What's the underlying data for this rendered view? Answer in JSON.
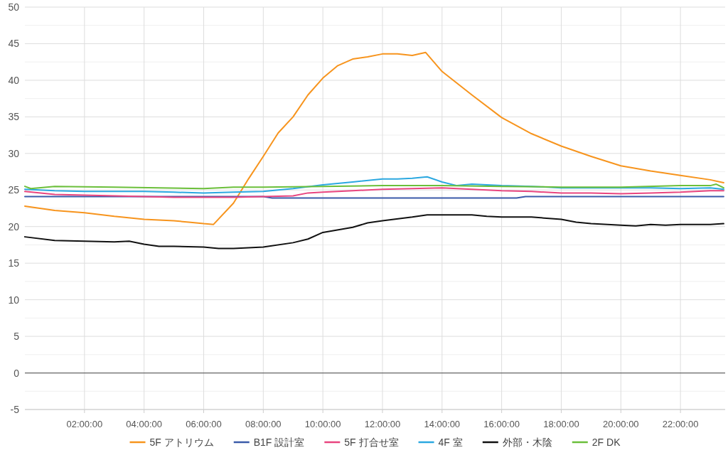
{
  "chart_data": {
    "type": "line",
    "xlim": [
      0,
      23.5
    ],
    "xticks": [
      {
        "value": 2,
        "label": "02:00:00"
      },
      {
        "value": 4,
        "label": "04:00:00"
      },
      {
        "value": 6,
        "label": "06:00:00"
      },
      {
        "value": 8,
        "label": "08:00:00"
      },
      {
        "value": 10,
        "label": "10:00:00"
      },
      {
        "value": 12,
        "label": "12:00:00"
      },
      {
        "value": 14,
        "label": "14:00:00"
      },
      {
        "value": 16,
        "label": "16:00:00"
      },
      {
        "value": 18,
        "label": "18:00:00"
      },
      {
        "value": 20,
        "label": "20:00:00"
      },
      {
        "value": 22,
        "label": "22:00:00"
      }
    ],
    "ylim": [
      -5,
      50
    ],
    "yticks": [
      -5,
      {
        "value": -2.5,
        "label": null
      },
      0,
      {
        "value": 2.5,
        "label": null
      },
      5,
      {
        "value": 7.5,
        "label": null
      },
      10,
      {
        "value": 12.5,
        "label": null
      },
      15,
      {
        "value": 17.5,
        "label": null
      },
      20,
      {
        "value": 22.5,
        "label": null
      },
      25,
      {
        "value": 27.5,
        "label": null
      },
      30,
      {
        "value": 32.5,
        "label": null
      },
      35,
      {
        "value": 37.5,
        "label": null
      },
      40,
      {
        "value": 42.5,
        "label": null
      },
      45,
      {
        "value": 47.5,
        "label": null
      },
      50
    ],
    "grid": true,
    "legend": "bottom",
    "line_style": "solid",
    "marker": "none",
    "ref_lines": [
      {
        "axis": "y",
        "value": 0,
        "color": "#666666"
      }
    ],
    "series": [
      {
        "name": "5F アトリウム",
        "color": "#f7941d",
        "x": [
          0,
          1,
          2,
          3,
          4,
          5,
          5.5,
          6,
          6.33,
          7,
          7.5,
          8,
          8.5,
          9,
          9.5,
          10,
          10.5,
          11,
          11.5,
          12,
          12.5,
          13,
          13.45,
          14,
          15,
          16,
          17,
          18,
          19,
          20,
          21,
          22,
          23,
          23.45
        ],
        "values": [
          22.8,
          22.2,
          21.9,
          21.4,
          21.0,
          20.8,
          20.6,
          20.4,
          20.3,
          23.2,
          26.5,
          29.6,
          32.8,
          35.0,
          38.0,
          40.3,
          42.0,
          42.9,
          43.2,
          43.6,
          43.6,
          43.4,
          43.8,
          41.2,
          38.0,
          34.9,
          32.7,
          31.0,
          29.6,
          28.3,
          27.6,
          27.0,
          26.4,
          26.0
        ]
      },
      {
        "name": "B1F 設計室",
        "color": "#3a5ba9",
        "x": [
          0,
          8,
          8.3,
          16.5,
          16.8,
          23.45
        ],
        "values": [
          24.1,
          24.1,
          23.9,
          23.9,
          24.1,
          24.1
        ]
      },
      {
        "name": "5F 打合せ室",
        "color": "#e8457f",
        "x": [
          0,
          1,
          2,
          3,
          4,
          5,
          6,
          7,
          8,
          9,
          9.5,
          10,
          11,
          12,
          13,
          14,
          15,
          16,
          17,
          18,
          19,
          20,
          21,
          22,
          23,
          23.45
        ],
        "values": [
          24.8,
          24.4,
          24.3,
          24.2,
          24.1,
          24.0,
          24.0,
          24.0,
          24.1,
          24.2,
          24.6,
          24.7,
          24.9,
          25.1,
          25.2,
          25.3,
          25.1,
          24.9,
          24.8,
          24.6,
          24.6,
          24.5,
          24.6,
          24.7,
          24.9,
          24.9
        ]
      },
      {
        "name": "4F 室",
        "color": "#2ba8e0",
        "x": [
          0,
          1,
          2,
          3,
          4,
          5,
          6,
          7,
          8,
          9,
          10,
          11,
          12,
          12.5,
          13,
          13.5,
          14,
          14.5,
          15,
          16,
          17,
          18,
          19,
          20,
          21,
          22,
          23,
          23.45
        ],
        "values": [
          25.1,
          24.9,
          24.8,
          24.8,
          24.8,
          24.7,
          24.6,
          24.7,
          24.8,
          25.2,
          25.7,
          26.1,
          26.5,
          26.5,
          26.6,
          26.8,
          26.1,
          25.6,
          25.8,
          25.6,
          25.5,
          25.3,
          25.3,
          25.3,
          25.3,
          25.2,
          25.3,
          25.1
        ]
      },
      {
        "name": "外部・木陰",
        "color": "#111111",
        "x": [
          0,
          1,
          2,
          3,
          3.5,
          4,
          4.5,
          5,
          6,
          6.5,
          7,
          8,
          9,
          9.5,
          10,
          11,
          11.5,
          12,
          13,
          13.5,
          14,
          15,
          15.5,
          16,
          17,
          18,
          18.5,
          19,
          20,
          20.5,
          21,
          21.5,
          22,
          23,
          23.45
        ],
        "values": [
          18.6,
          18.1,
          18.0,
          17.9,
          18.0,
          17.6,
          17.3,
          17.3,
          17.2,
          17.0,
          17.0,
          17.2,
          17.8,
          18.3,
          19.2,
          19.9,
          20.5,
          20.8,
          21.3,
          21.6,
          21.6,
          21.6,
          21.4,
          21.3,
          21.3,
          21.0,
          20.6,
          20.4,
          20.2,
          20.1,
          20.3,
          20.2,
          20.3,
          20.3,
          20.4
        ]
      },
      {
        "name": "2F DK",
        "color": "#6bbf3a",
        "x": [
          0,
          0.2,
          1,
          3,
          6,
          7,
          8,
          10,
          12,
          14,
          16,
          18,
          20,
          22,
          23,
          23.2,
          23.45
        ],
        "values": [
          25.5,
          25.2,
          25.5,
          25.4,
          25.2,
          25.4,
          25.4,
          25.5,
          25.6,
          25.6,
          25.5,
          25.4,
          25.4,
          25.6,
          25.6,
          25.8,
          25.3
        ]
      }
    ]
  }
}
